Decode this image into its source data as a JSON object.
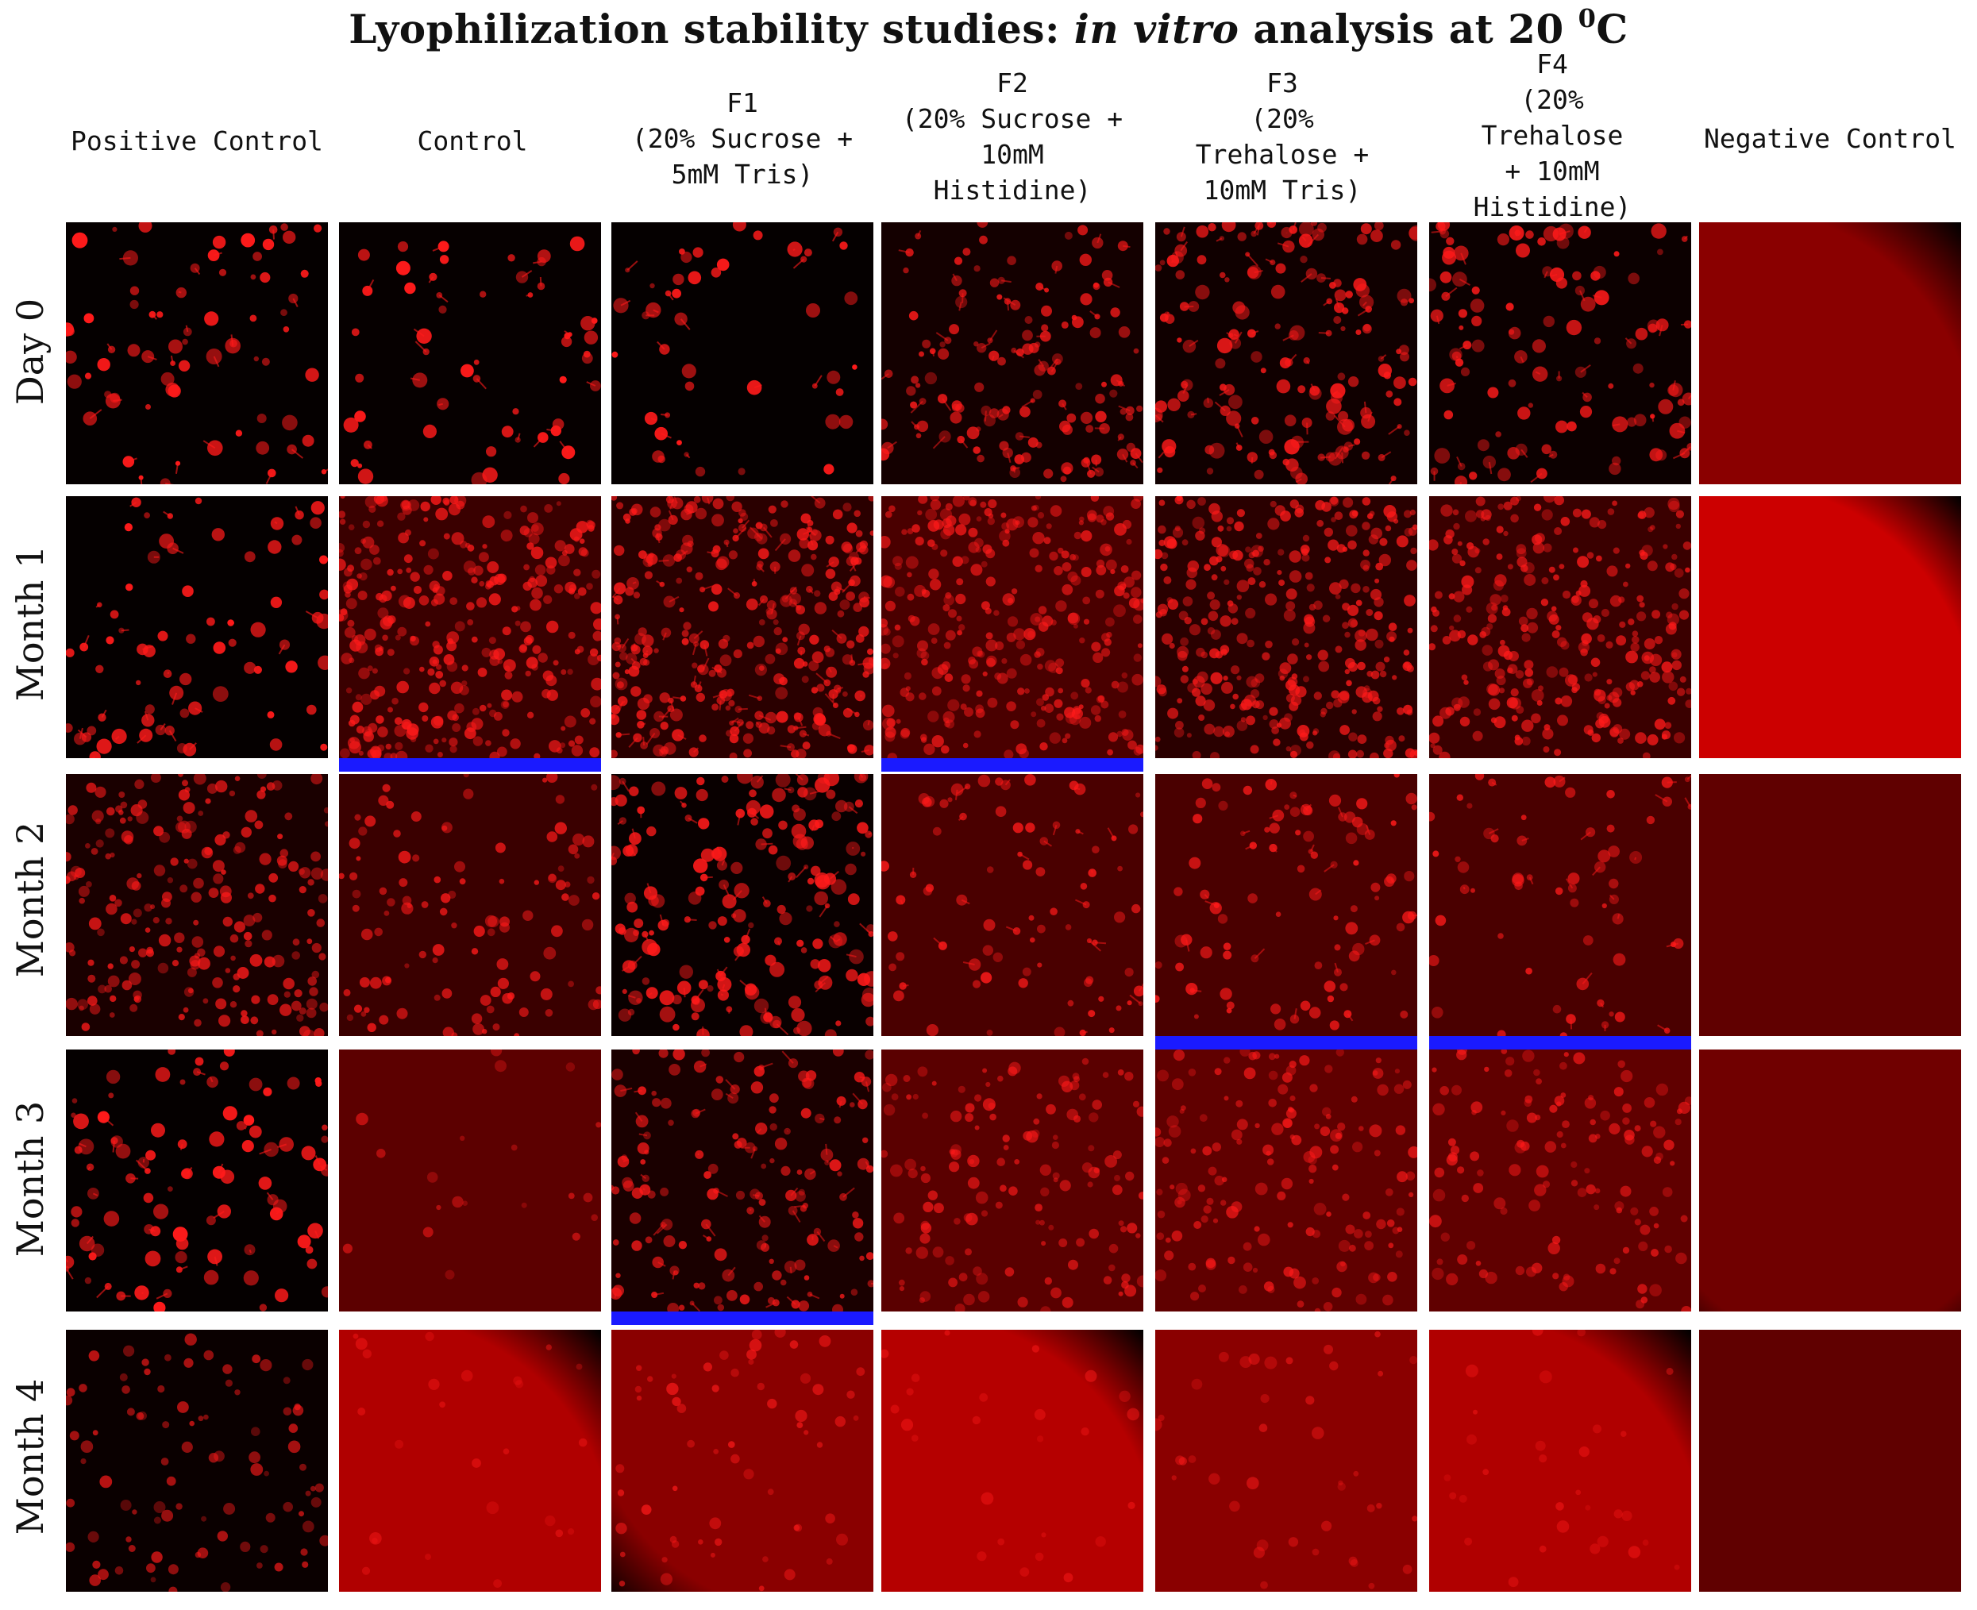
{
  "title": {
    "prefix": "Lyophilization stability studies: ",
    "italic": "in vitro",
    "suffix": " analysis at 20 ",
    "superscript": "0",
    "unit": "C"
  },
  "columns": [
    {
      "lines": [
        "Positive Control"
      ]
    },
    {
      "lines": [
        "Control"
      ]
    },
    {
      "lines": [
        "F1",
        "(20% Sucrose +",
        "5mM Tris)"
      ]
    },
    {
      "lines": [
        "F2",
        "(20% Sucrose +",
        "10mM",
        "Histidine)"
      ]
    },
    {
      "lines": [
        "F3",
        "(20%",
        "Trehalose +",
        "10mM Tris)"
      ]
    },
    {
      "lines": [
        "F4",
        "(20%",
        "Trehalose",
        "+ 10mM",
        "Histidine)"
      ]
    },
    {
      "lines": [
        "Negative Control"
      ]
    }
  ],
  "rows": [
    "Day 0",
    "Month 1",
    "Month 2",
    "Month 3",
    "Month 4"
  ],
  "colors": {
    "highlight_bar": "#1a1aff",
    "fluorescence": "#ff1a1a"
  },
  "highlighted_panels": [
    {
      "row": "Month 1",
      "column": "Control"
    },
    {
      "row": "Month 1",
      "column": "F2"
    },
    {
      "row": "Month 2",
      "column": "F3"
    },
    {
      "row": "Month 2",
      "column": "F4"
    },
    {
      "row": "Month 3",
      "column": "F1"
    }
  ]
}
